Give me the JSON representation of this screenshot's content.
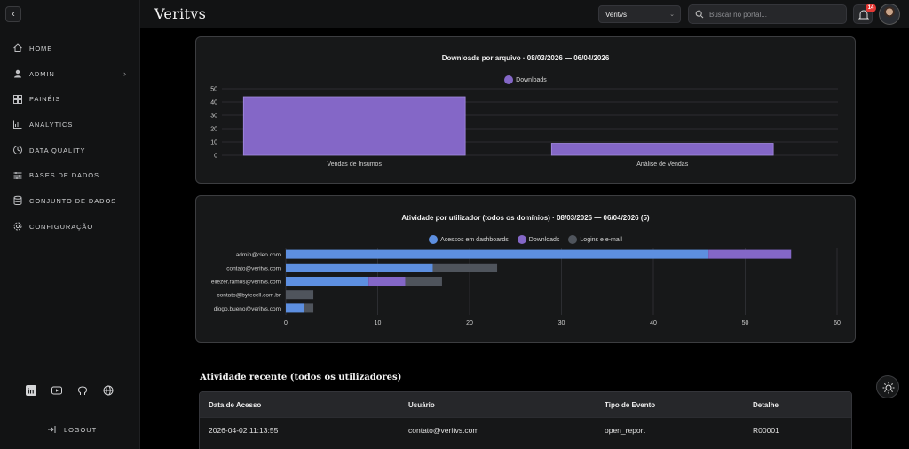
{
  "app": {
    "logo": "Veritvs"
  },
  "sidebar": {
    "items": [
      {
        "label": "HOME",
        "icon": "home-icon"
      },
      {
        "label": "ADMIN",
        "icon": "user-icon"
      },
      {
        "label": "PAINÉIS",
        "icon": "dashboard-icon"
      },
      {
        "label": "ANALYTICS",
        "icon": "bar-chart-icon"
      },
      {
        "label": "DATA QUALITY",
        "icon": "gauge-icon"
      },
      {
        "label": "BASES DE DADOS",
        "icon": "sliders-icon"
      },
      {
        "label": "CONJUNTO DE DADOS",
        "icon": "database-icon"
      },
      {
        "label": "CONFIGURAÇÃO",
        "icon": "gear-icon"
      }
    ],
    "social": [
      "linkedin-icon",
      "youtube-icon",
      "github-icon",
      "globe-icon"
    ],
    "logout_label": "LOGOUT"
  },
  "header": {
    "domain_selected": "Veritvs",
    "search_placeholder": "Buscar no portal...",
    "notifications_count": "14"
  },
  "chart_data": [
    {
      "type": "bar",
      "title": "Downloads por arquivo · 08/03/2026 — 06/04/2026",
      "categories": [
        "Vendas de Insumos",
        "Análise de Vendas"
      ],
      "series": [
        {
          "name": "Downloads",
          "values": [
            44,
            9
          ],
          "color": "#8467c7"
        }
      ],
      "ylim": [
        0,
        50
      ],
      "yticks": [
        0,
        10,
        20,
        30,
        40,
        50
      ],
      "legend": "top"
    },
    {
      "type": "bar",
      "orientation": "horizontal",
      "stacked": true,
      "title": "Atividade por utilizador (todos os domínios) · 08/03/2026 — 06/04/2026 (5)",
      "categories": [
        "admin@cleo.com",
        "contato@veritvs.com",
        "eliezer.ramos@veritvs.com",
        "contato@bytecell.com.br",
        "diogo.bueno@veritvs.com"
      ],
      "series": [
        {
          "name": "Acessos em dashboards",
          "values": [
            46,
            16,
            9,
            0,
            2
          ],
          "color": "#5d8fe0"
        },
        {
          "name": "Downloads",
          "values": [
            9,
            0,
            4,
            0,
            0
          ],
          "color": "#8467c7"
        },
        {
          "name": "Logins e e-mail",
          "values": [
            0,
            7,
            4,
            3,
            1
          ],
          "color": "#4f545c"
        }
      ],
      "xlim": [
        0,
        60
      ],
      "xticks": [
        0,
        10,
        20,
        30,
        40,
        50,
        60
      ],
      "legend": "top"
    }
  ],
  "recent": {
    "title": "Atividade recente (todos os utilizadores)",
    "columns": [
      "Data de Acesso",
      "Usuário",
      "Tipo de Evento",
      "Detalhe"
    ],
    "rows": [
      [
        "2026-04-02 11:13:55",
        "contato@veritvs.com",
        "open_report",
        "R00001"
      ]
    ]
  }
}
